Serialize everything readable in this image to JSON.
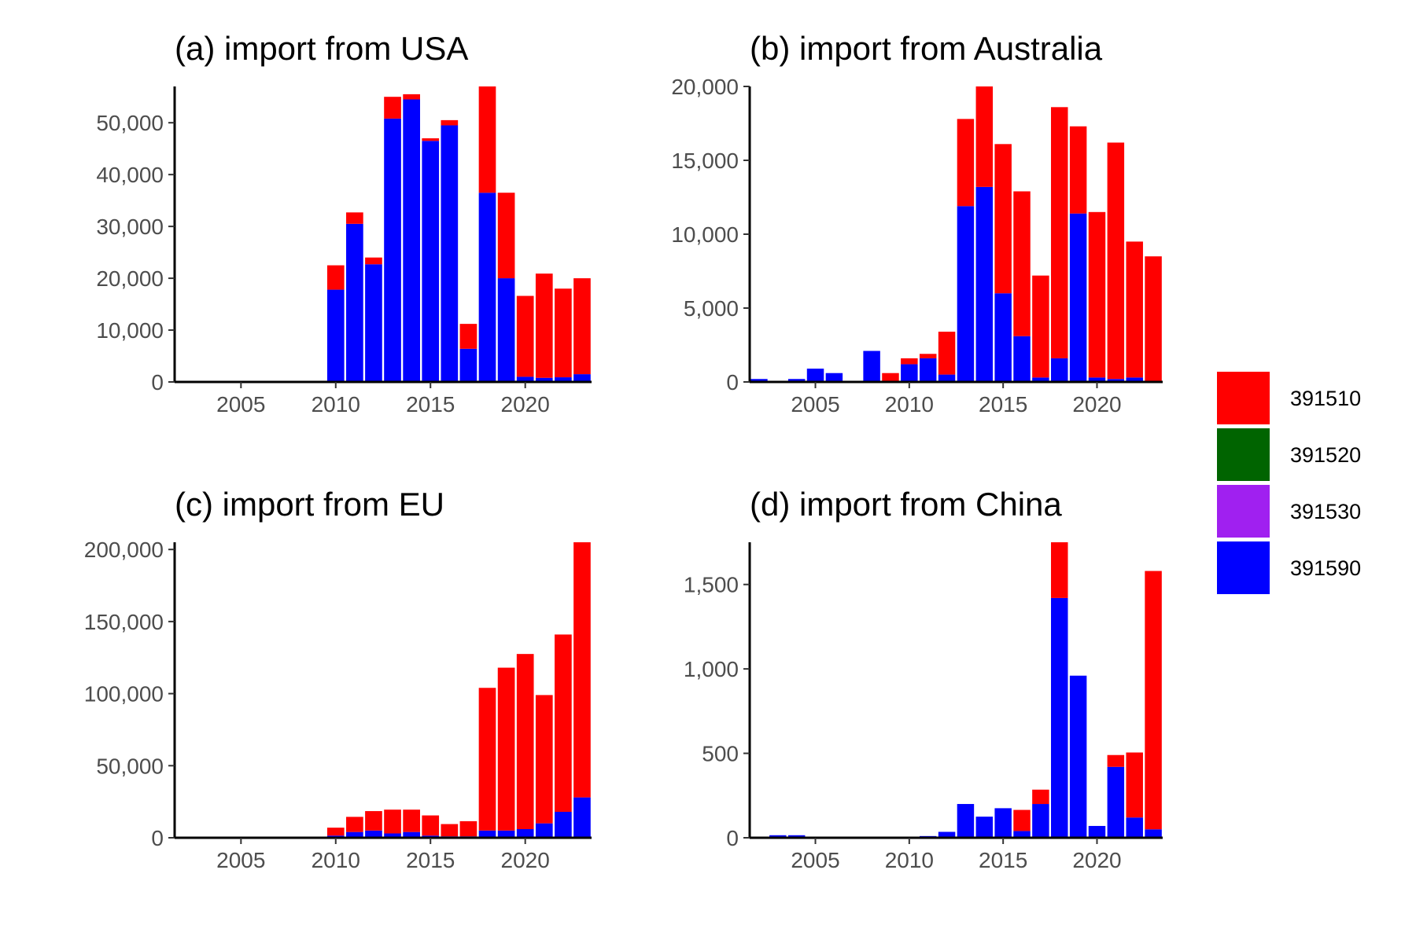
{
  "chart_data": [
    {
      "type": "bar",
      "title": "(a) import from USA",
      "xlabel": "",
      "ylabel": "",
      "x": [
        2002,
        2003,
        2004,
        2005,
        2006,
        2007,
        2008,
        2009,
        2010,
        2011,
        2012,
        2013,
        2014,
        2015,
        2016,
        2017,
        2018,
        2019,
        2020,
        2021,
        2022,
        2023
      ],
      "xlim": [
        2001.5,
        2023.5
      ],
      "ylim": [
        0,
        57000
      ],
      "yticks": [
        0,
        10000,
        20000,
        30000,
        40000,
        50000
      ],
      "xticks": [
        2005,
        2010,
        2015,
        2020
      ],
      "series": [
        {
          "name": "391590",
          "values": [
            0,
            0,
            0,
            0,
            0,
            0,
            0,
            0,
            17800,
            30500,
            22700,
            50800,
            54500,
            46500,
            49500,
            6400,
            36500,
            20000,
            1000,
            800,
            900,
            1500
          ]
        },
        {
          "name": "391530",
          "values": [
            0,
            0,
            0,
            0,
            0,
            0,
            0,
            0,
            0,
            0,
            0,
            0,
            0,
            0,
            0,
            0,
            0,
            0,
            0,
            0,
            0,
            0
          ]
        },
        {
          "name": "391520",
          "values": [
            0,
            0,
            0,
            0,
            0,
            0,
            0,
            0,
            0,
            0,
            0,
            0,
            0,
            0,
            0,
            0,
            0,
            0,
            0,
            0,
            0,
            0
          ]
        },
        {
          "name": "391510",
          "values": [
            0,
            0,
            0,
            0,
            0,
            0,
            0,
            0,
            4700,
            2200,
            1300,
            4200,
            1000,
            500,
            1000,
            4800,
            20500,
            16500,
            15600,
            20100,
            17100,
            18500
          ]
        }
      ]
    },
    {
      "type": "bar",
      "title": "(b) import from Australia",
      "xlabel": "",
      "ylabel": "",
      "x": [
        2002,
        2003,
        2004,
        2005,
        2006,
        2007,
        2008,
        2009,
        2010,
        2011,
        2012,
        2013,
        2014,
        2015,
        2016,
        2017,
        2018,
        2019,
        2020,
        2021,
        2022,
        2023
      ],
      "xlim": [
        2001.5,
        2023.5
      ],
      "ylim": [
        0,
        20000
      ],
      "yticks": [
        0,
        5000,
        10000,
        15000,
        20000
      ],
      "xticks": [
        2005,
        2010,
        2015,
        2020
      ],
      "series": [
        {
          "name": "391590",
          "values": [
            200,
            0,
            200,
            900,
            600,
            0,
            2100,
            0,
            1200,
            1600,
            500,
            11900,
            13200,
            6000,
            3100,
            300,
            1600,
            11400,
            300,
            200,
            300,
            0
          ]
        },
        {
          "name": "391530",
          "values": [
            0,
            0,
            0,
            0,
            0,
            0,
            0,
            0,
            0,
            0,
            0,
            0,
            0,
            0,
            0,
            0,
            0,
            0,
            0,
            0,
            0,
            0
          ]
        },
        {
          "name": "391520",
          "values": [
            0,
            0,
            0,
            0,
            0,
            0,
            0,
            0,
            0,
            0,
            0,
            0,
            0,
            0,
            0,
            0,
            0,
            0,
            0,
            0,
            0,
            0
          ]
        },
        {
          "name": "391510",
          "values": [
            0,
            0,
            0,
            0,
            0,
            0,
            0,
            600,
            400,
            300,
            2900,
            5900,
            6800,
            10100,
            9800,
            6900,
            17000,
            5900,
            11200,
            16000,
            9200,
            8500
          ]
        }
      ]
    },
    {
      "type": "bar",
      "title": "(c) import from EU",
      "xlabel": "",
      "ylabel": "",
      "x": [
        2002,
        2003,
        2004,
        2005,
        2006,
        2007,
        2008,
        2009,
        2010,
        2011,
        2012,
        2013,
        2014,
        2015,
        2016,
        2017,
        2018,
        2019,
        2020,
        2021,
        2022,
        2023
      ],
      "xlim": [
        2001.5,
        2023.5
      ],
      "ylim": [
        0,
        205000
      ],
      "yticks": [
        0,
        50000,
        100000,
        150000,
        200000
      ],
      "xticks": [
        2005,
        2010,
        2015,
        2020
      ],
      "series": [
        {
          "name": "391590",
          "values": [
            0,
            0,
            0,
            0,
            0,
            0,
            500,
            300,
            1500,
            4000,
            5000,
            3000,
            4000,
            1500,
            1000,
            1000,
            5000,
            5000,
            6000,
            10000,
            18000,
            28000
          ]
        },
        {
          "name": "391530",
          "values": [
            0,
            0,
            0,
            0,
            0,
            0,
            0,
            0,
            0,
            0,
            0,
            0,
            0,
            0,
            0,
            0,
            0,
            0,
            0,
            0,
            0,
            0
          ]
        },
        {
          "name": "391520",
          "values": [
            0,
            0,
            0,
            0,
            0,
            0,
            0,
            0,
            0,
            0,
            0,
            0,
            0,
            0,
            0,
            0,
            0,
            0,
            0,
            0,
            0,
            0
          ]
        },
        {
          "name": "391510",
          "values": [
            0,
            0,
            0,
            0,
            0,
            0,
            300,
            200,
            5500,
            10500,
            13500,
            16500,
            15500,
            14000,
            8500,
            10500,
            99000,
            113000,
            121500,
            89000,
            123000,
            177000
          ]
        }
      ]
    },
    {
      "type": "bar",
      "title": "(d) import from China",
      "xlabel": "",
      "ylabel": "",
      "x": [
        2002,
        2003,
        2004,
        2005,
        2006,
        2007,
        2008,
        2009,
        2010,
        2011,
        2012,
        2013,
        2014,
        2015,
        2016,
        2017,
        2018,
        2019,
        2020,
        2021,
        2022,
        2023
      ],
      "xlim": [
        2001.5,
        2023.5
      ],
      "ylim": [
        0,
        1750
      ],
      "yticks": [
        0,
        500,
        1000,
        1500
      ],
      "xticks": [
        2005,
        2010,
        2015,
        2020
      ],
      "series": [
        {
          "name": "391590",
          "values": [
            0,
            15,
            15,
            5,
            5,
            5,
            5,
            5,
            5,
            10,
            35,
            200,
            125,
            175,
            40,
            200,
            1420,
            960,
            70,
            420,
            120,
            50
          ]
        },
        {
          "name": "391530",
          "values": [
            0,
            0,
            0,
            0,
            0,
            0,
            0,
            0,
            0,
            0,
            0,
            0,
            0,
            0,
            0,
            0,
            0,
            0,
            0,
            0,
            0,
            0
          ]
        },
        {
          "name": "391520",
          "values": [
            0,
            0,
            0,
            0,
            0,
            0,
            0,
            0,
            0,
            0,
            0,
            0,
            0,
            0,
            0,
            0,
            0,
            0,
            0,
            0,
            0,
            0
          ]
        },
        {
          "name": "391510",
          "values": [
            0,
            0,
            0,
            0,
            0,
            0,
            0,
            0,
            0,
            0,
            0,
            0,
            0,
            0,
            125,
            85,
            330,
            0,
            0,
            70,
            385,
            1530
          ]
        }
      ]
    }
  ],
  "legend": {
    "position": "right",
    "items": [
      {
        "label": "391510",
        "color": "#ff0000"
      },
      {
        "label": "391520",
        "color": "#006400"
      },
      {
        "label": "391530",
        "color": "#a020f0"
      },
      {
        "label": "391590",
        "color": "#0000ff"
      }
    ]
  },
  "colors": {
    "391510": "#ff0000",
    "391520": "#006400",
    "391530": "#a020f0",
    "391590": "#0000ff"
  }
}
